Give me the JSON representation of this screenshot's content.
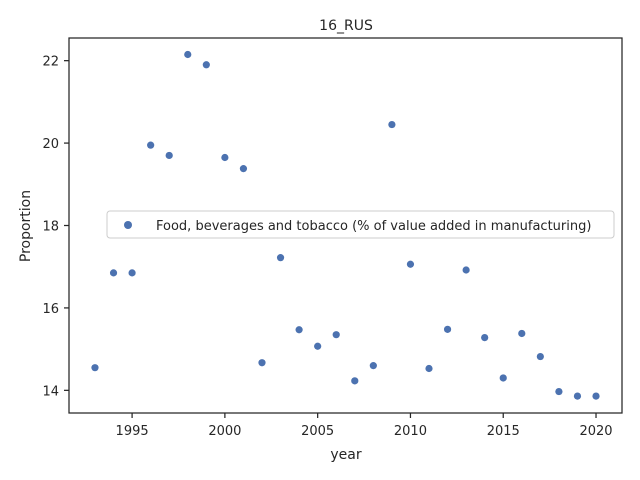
{
  "chart_data": {
    "type": "scatter",
    "title": "16_RUS",
    "xlabel": "year",
    "ylabel": "Proportion",
    "xlim": [
      1991.6,
      2021.4
    ],
    "ylim": [
      13.45,
      22.55
    ],
    "xticks": [
      1995,
      2000,
      2005,
      2010,
      2015,
      2020
    ],
    "yticks": [
      14,
      16,
      18,
      20,
      22
    ],
    "grid": false,
    "legend_position": "center-right",
    "series": [
      {
        "name": "Food, beverages and tobacco (% of value added in manufacturing)",
        "color": "#4c72b0",
        "x": [
          1993,
          1994,
          1995,
          1996,
          1997,
          1998,
          1999,
          2000,
          2001,
          2002,
          2003,
          2004,
          2005,
          2006,
          2007,
          2008,
          2009,
          2010,
          2011,
          2012,
          2013,
          2014,
          2015,
          2016,
          2017,
          2018,
          2019,
          2020
        ],
        "y": [
          14.55,
          16.85,
          16.85,
          19.95,
          19.7,
          22.15,
          21.9,
          19.65,
          19.38,
          14.67,
          17.22,
          15.47,
          15.07,
          15.35,
          14.23,
          14.6,
          20.45,
          17.06,
          14.53,
          15.48,
          16.92,
          15.28,
          14.3,
          15.38,
          14.82,
          13.97,
          13.86,
          13.86
        ]
      }
    ]
  }
}
